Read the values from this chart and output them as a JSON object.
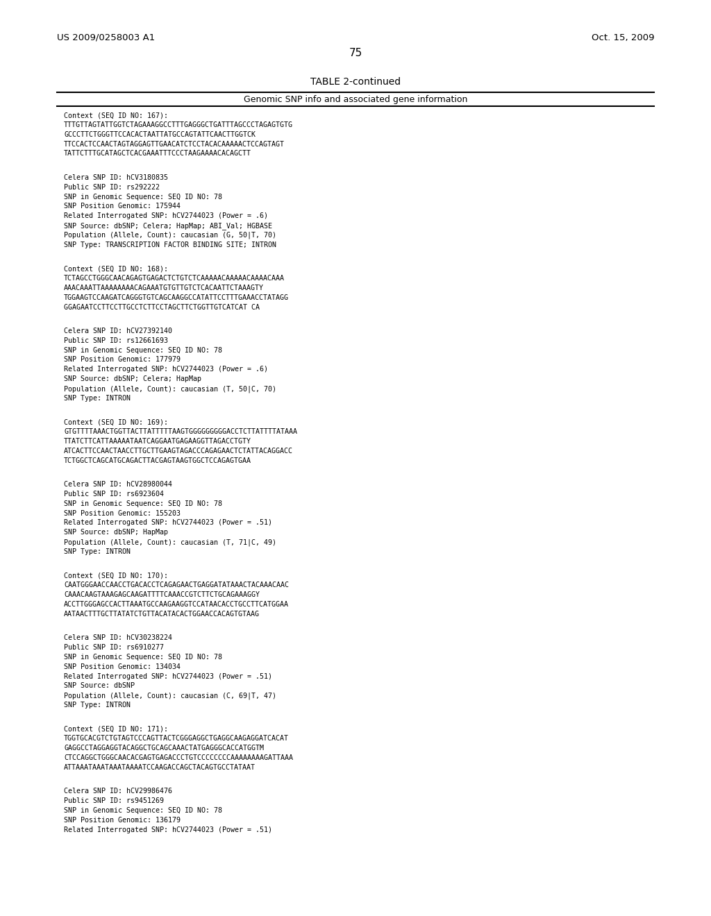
{
  "header_left": "US 2009/0258003 A1",
  "header_right": "Oct. 15, 2009",
  "page_number": "75",
  "table_title": "TABLE 2-continued",
  "table_subtitle": "Genomic SNP info and associated gene information",
  "background_color": "#ffffff",
  "text_color": "#000000",
  "content": [
    {
      "type": "context",
      "text": "Context (SEQ ID NO: 167):\nTTTGTTAGTATTGGTCTAGAAAGGCCTTTGAGGGCTGATTTAGCCCTAGAGTGTG\nGCCCTTCTGGGTTCCACACTAATTATGCCAGTATTCAACTTGGTCK\nTTCCACTCCAACTAGTAGGAGTTGAACATCTCCTACACAAAAACTCCAGTAGT\nTATTCTTTGCATAGCTCACGAAATTTCCCTAAGAAAACACAGCTT"
    },
    {
      "type": "snp_info",
      "text": "Celera SNP ID: hCV3180835\nPublic SNP ID: rs292222\nSNP in Genomic Sequence: SEQ ID NO: 78\nSNP Position Genomic: 175944\nRelated Interrogated SNP: hCV2744023 (Power = .6)\nSNP Source: dbSNP; Celera; HapMap; ABI_Val; HGBASE\nPopulation (Allele, Count): caucasian (G, 50|T, 70)\nSNP Type: TRANSCRIPTION FACTOR BINDING SITE; INTRON"
    },
    {
      "type": "context",
      "text": "Context (SEQ ID NO: 168):\nTCTAGCCTGGGCAACAGAGTGAGACTCTGTCTCAAAAACAAAAACAAAACAAA\nAAACAAATTAAAAAAAACAGAAATGTGTTGTCTCACAATTCTAAAGTY\nTGGAAGTCCAAGATCAGGGTGTCAGCAAGGCCATATTCCTTTGAAACCTATAGG\nGGAGAATCCTTCCTTGCCTCTTCCTAGCTTCTGGTTGTCATCAT CA"
    },
    {
      "type": "snp_info",
      "text": "Celera SNP ID: hCV27392140\nPublic SNP ID: rs12661693\nSNP in Genomic Sequence: SEQ ID NO: 78\nSNP Position Genomic: 177979\nRelated Interrogated SNP: hCV2744023 (Power = .6)\nSNP Source: dbSNP; Celera; HapMap\nPopulation (Allele, Count): caucasian (T, 50|C, 70)\nSNP Type: INTRON"
    },
    {
      "type": "context",
      "text": "Context (SEQ ID NO: 169):\nGTGTTTTAAACTGGTTACTTATTTTTAAGTGGGGGGGGGACCTCTTATTTTATAAA\nTTATCTTCATTAAAAATAATCAGGAATGAGAAGGTTAGACCTGTY\nATCACTTCCAACTAACCTTGCTTGAAGTAGACCCAGAGAACTCTATTACAGGACC\nTCTGGCTCAGCATGCAGACTTACGAGTAAGTGGCTCCAGAGTGAA"
    },
    {
      "type": "snp_info",
      "text": "Celera SNP ID: hCV28980044\nPublic SNP ID: rs6923604\nSNP in Genomic Sequence: SEQ ID NO: 78\nSNP Position Genomic: 155203\nRelated Interrogated SNP: hCV2744023 (Power = .51)\nSNP Source: dbSNP; HapMap\nPopulation (Allele, Count): caucasian (T, 71|C, 49)\nSNP Type: INTRON"
    },
    {
      "type": "context",
      "text": "Context (SEQ ID NO: 170):\nCAATGGGAACCAACCTGACACCTCAGAGAACTGAGGATATAAACTACAAACAAC\nCAAACAAGTAAAGAGCAAGATTTTCAAACCGTCTTCTGCAGAAAGGY\nACCTTGGGAGCCACTTAAATGCCAAGAAGGTCCATAACACCTGCCTTCATGGAA\nAATAACTTTGCTTATATCTGTTACATACACTGGAACCACAGTGTAAG"
    },
    {
      "type": "snp_info",
      "text": "Celera SNP ID: hCV30238224\nPublic SNP ID: rs6910277\nSNP in Genomic Sequence: SEQ ID NO: 78\nSNP Position Genomic: 134034\nRelated Interrogated SNP: hCV2744023 (Power = .51)\nSNP Source: dbSNP\nPopulation (Allele, Count): caucasian (C, 69|T, 47)\nSNP Type: INTRON"
    },
    {
      "type": "context",
      "text": "Context (SEQ ID NO: 171):\nTGGTGCACGTCTGTAGTCCCAGTTACTCGGGAGGCTGAGGCAAGAGGATCACAT\nGAGGCCTAGGAGGTACAGGCTGCAGCAAACTATGAGGGCACCATGGTM\nCTCCAGGCTGGGCAACACGAGTGAGACCCTGTCCCCCCCCAAAAAAAAGATTAAA\nATTAAATAAATAAATAAAATCCAAGACCAGCTACAGTGCCTATAAT"
    },
    {
      "type": "snp_info_partial",
      "text": "Celera SNP ID: hCV29986476\nPublic SNP ID: rs9451269\nSNP in Genomic Sequence: SEQ ID NO: 78\nSNP Position Genomic: 136179\nRelated Interrogated SNP: hCV2744023 (Power = .51)"
    }
  ]
}
